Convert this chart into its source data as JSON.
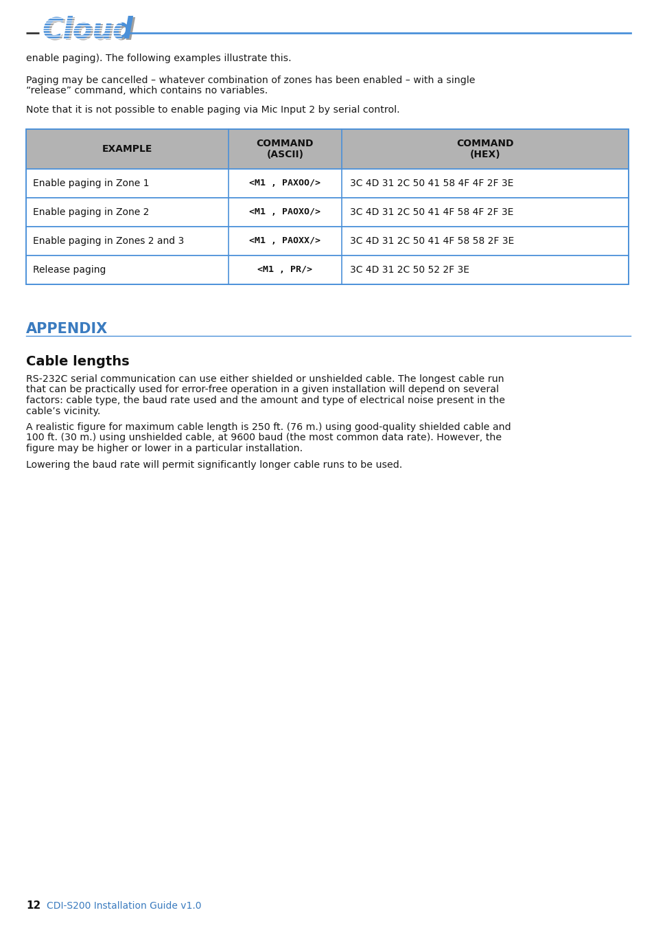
{
  "page_bg": "#ffffff",
  "body_text_color": "#1a1a1a",
  "logo_color": "#4a90d9",
  "logo_shadow_color": "#a0a0a0",
  "header_line_color": "#4a90d9",
  "header_black_line_color": "#333333",
  "intro_line1": "enable paging). The following examples illustrate this.",
  "intro_para2_line1": "Paging may be cancelled – whatever combination of zones has been enabled – with a single",
  "intro_para2_line2": "“release” command, which contains no variables.",
  "intro_line3": "Note that it is not possible to enable paging via Mic Input 2 by serial control.",
  "table_header_bg": "#b3b3b3",
  "table_border_color": "#4a90d9",
  "table_col1_header": "EXAMPLE",
  "table_col2_header": "COMMAND\n(ASCII)",
  "table_col3_header": "COMMAND\n(HEX)",
  "table_rows": [
    [
      "Enable paging in Zone 1",
      "<M1 , PAXOO/>",
      "3C 4D 31 2C 50 41 58 4F 4F 2F 3E"
    ],
    [
      "Enable paging in Zone 2",
      "<M1 , PAOXO/>",
      "3C 4D 31 2C 50 41 4F 58 4F 2F 3E"
    ],
    [
      "Enable paging in Zones 2 and 3",
      "<M1 , PAOXX/>",
      "3C 4D 31 2C 50 41 4F 58 58 2F 3E"
    ],
    [
      "Release paging",
      "<M1 , PR/>",
      "3C 4D 31 2C 50 52 2F 3E"
    ]
  ],
  "appendix_title": "APPENDIX",
  "appendix_color": "#3a7bbf",
  "section_title": "Cable lengths",
  "section_para1_lines": [
    "RS-232C serial communication can use either shielded or unshielded cable. The longest cable run",
    "that can be practically used for error-free operation in a given installation will depend on several",
    "factors: cable type, the baud rate used and the amount and type of electrical noise present in the",
    "cable’s vicinity."
  ],
  "section_para2_lines": [
    "A realistic figure for maximum cable length is 250 ft. (76 m.) using good-quality shielded cable and",
    "100 ft. (30 m.) using unshielded cable, at 9600 baud (the most common data rate). However, the",
    "figure may be higher or lower in a particular installation."
  ],
  "section_para3": "Lowering the baud rate will permit significantly longer cable runs to be used.",
  "footer_page": "12",
  "footer_text": "CDI-S200 Installation Guide v1.0"
}
